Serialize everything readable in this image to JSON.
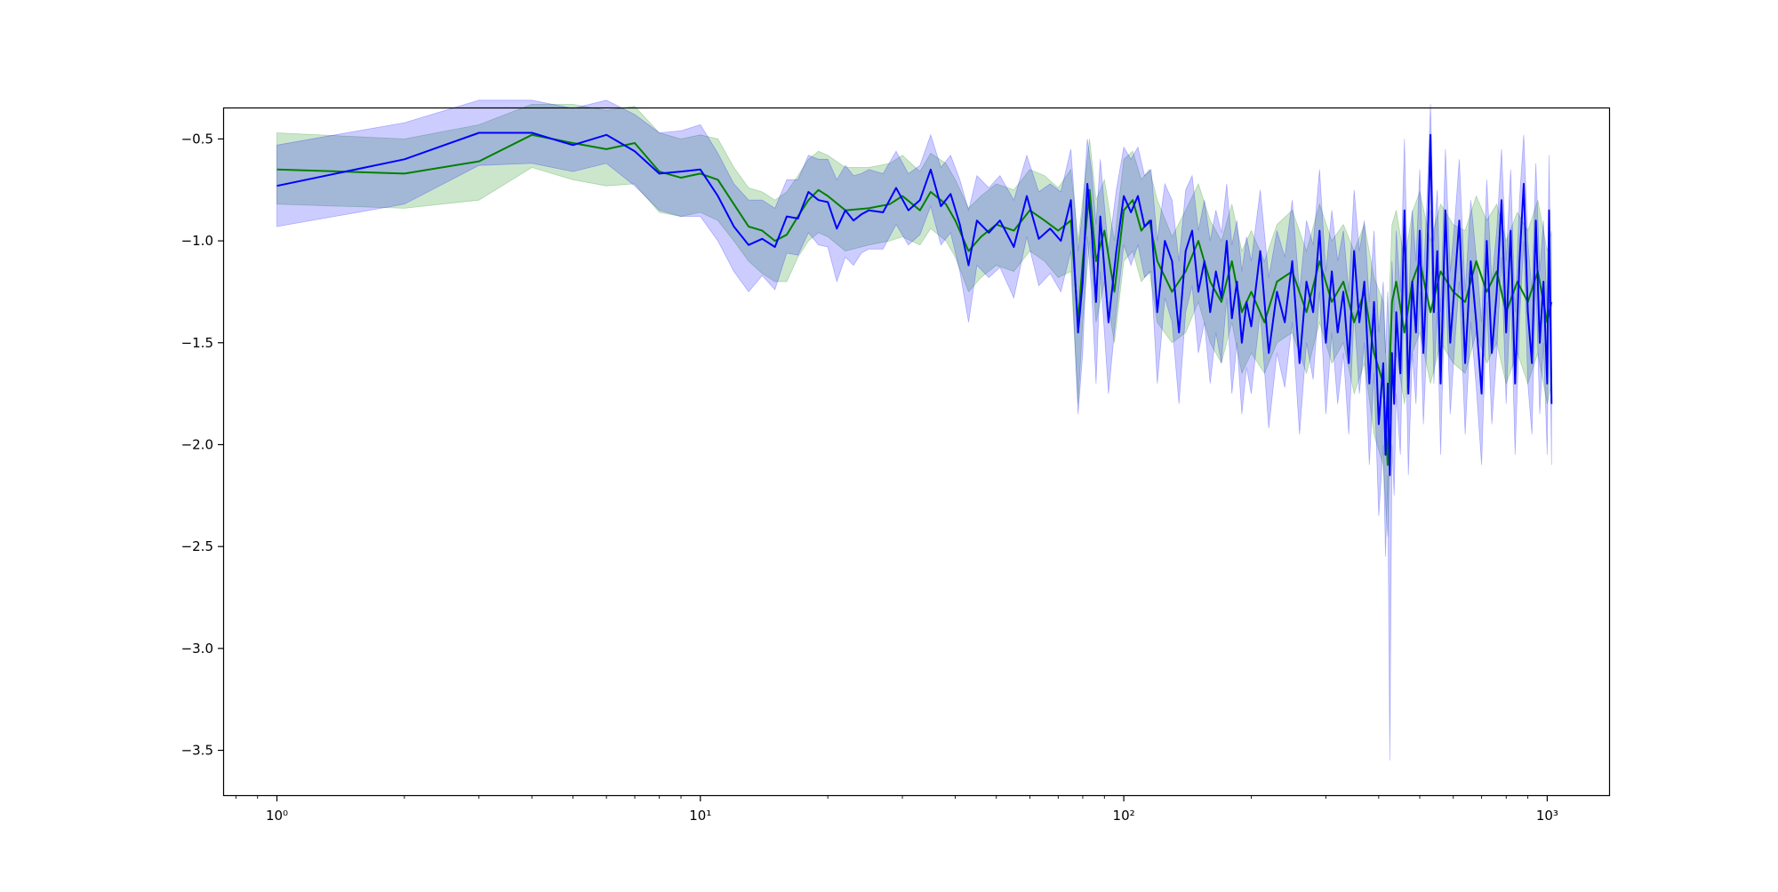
{
  "chart_data": {
    "type": "line",
    "title": "",
    "xlabel": "",
    "ylabel": "",
    "x_scale": "log",
    "xlim": [
      0.75,
      1400
    ],
    "ylim": [
      -3.72,
      -0.35
    ],
    "grid": false,
    "legend": "none",
    "x_ticks": [
      {
        "value": 1,
        "label": "10⁰"
      },
      {
        "value": 10,
        "label": "10¹"
      },
      {
        "value": 100,
        "label": "10²"
      },
      {
        "value": 1000,
        "label": "10³"
      }
    ],
    "y_ticks": [
      {
        "value": -0.5,
        "label": "−0.5"
      },
      {
        "value": -1.0,
        "label": "−1.0"
      },
      {
        "value": -1.5,
        "label": "−1.5"
      },
      {
        "value": -2.0,
        "label": "−2.0"
      },
      {
        "value": -2.5,
        "label": "−2.5"
      },
      {
        "value": -3.0,
        "label": "−3.0"
      },
      {
        "value": -3.5,
        "label": "−3.5"
      }
    ],
    "series": [
      {
        "color": "#008000",
        "band_color": "#008000",
        "x": [
          1,
          2,
          3,
          4,
          5,
          6,
          7,
          8,
          9,
          10,
          11,
          12,
          13,
          14,
          15,
          16,
          17,
          18,
          19,
          20,
          22,
          25,
          28,
          30,
          33,
          35,
          38,
          40,
          43,
          46,
          50,
          55,
          60,
          65,
          70,
          75,
          78,
          80,
          83,
          86,
          90,
          95,
          100,
          105,
          110,
          115,
          120,
          130,
          140,
          150,
          160,
          170,
          180,
          190,
          200,
          215,
          230,
          250,
          270,
          290,
          310,
          330,
          350,
          370,
          390,
          410,
          420,
          425,
          430,
          440,
          460,
          480,
          500,
          530,
          560,
          600,
          640,
          680,
          720,
          760,
          800,
          850,
          900,
          950,
          1000,
          1024
        ],
        "values": [
          -0.65,
          -0.67,
          -0.61,
          -0.48,
          -0.52,
          -0.55,
          -0.52,
          -0.66,
          -0.69,
          -0.67,
          -0.7,
          -0.82,
          -0.93,
          -0.95,
          -1.0,
          -0.97,
          -0.88,
          -0.8,
          -0.75,
          -0.78,
          -0.85,
          -0.84,
          -0.82,
          -0.78,
          -0.85,
          -0.76,
          -0.82,
          -0.9,
          -1.05,
          -0.98,
          -0.92,
          -0.95,
          -0.85,
          -0.9,
          -0.95,
          -0.9,
          -1.4,
          -1.1,
          -0.75,
          -1.1,
          -0.95,
          -1.25,
          -0.85,
          -0.8,
          -0.95,
          -0.9,
          -1.1,
          -1.25,
          -1.15,
          -1.0,
          -1.2,
          -1.3,
          -1.1,
          -1.35,
          -1.25,
          -1.4,
          -1.2,
          -1.15,
          -1.35,
          -1.1,
          -1.3,
          -1.2,
          -1.4,
          -1.25,
          -1.55,
          -1.7,
          -2.1,
          -1.6,
          -1.3,
          -1.2,
          -1.45,
          -1.2,
          -1.1,
          -1.35,
          -1.15,
          -1.25,
          -1.3,
          -1.1,
          -1.25,
          -1.15,
          -1.35,
          -1.2,
          -1.3,
          -1.15,
          -1.4,
          -1.3
        ],
        "lower": [
          -0.82,
          -0.84,
          -0.8,
          -0.64,
          -0.7,
          -0.73,
          -0.72,
          -0.86,
          -0.88,
          -0.86,
          -0.9,
          -1.0,
          -1.1,
          -1.16,
          -1.2,
          -1.2,
          -1.08,
          -1.0,
          -0.96,
          -0.98,
          -1.05,
          -1.02,
          -1.0,
          -0.98,
          -1.02,
          -0.94,
          -1.0,
          -1.08,
          -1.25,
          -1.18,
          -1.12,
          -1.15,
          -1.05,
          -1.1,
          -1.18,
          -1.15,
          -1.8,
          -1.4,
          -1.0,
          -1.4,
          -1.2,
          -1.5,
          -1.1,
          -1.05,
          -1.2,
          -1.15,
          -1.4,
          -1.5,
          -1.45,
          -1.3,
          -1.5,
          -1.6,
          -1.4,
          -1.65,
          -1.55,
          -1.65,
          -1.5,
          -1.45,
          -1.65,
          -1.4,
          -1.6,
          -1.5,
          -1.75,
          -1.6,
          -1.95,
          -2.1,
          -2.45,
          -2.0,
          -1.7,
          -1.55,
          -1.8,
          -1.55,
          -1.45,
          -1.7,
          -1.5,
          -1.6,
          -1.65,
          -1.45,
          -1.6,
          -1.5,
          -1.7,
          -1.55,
          -1.7,
          -1.55,
          -1.8,
          -1.7
        ],
        "upper": [
          -0.47,
          -0.5,
          -0.43,
          -0.33,
          -0.33,
          -0.36,
          -0.34,
          -0.47,
          -0.5,
          -0.48,
          -0.5,
          -0.64,
          -0.74,
          -0.76,
          -0.8,
          -0.76,
          -0.68,
          -0.6,
          -0.56,
          -0.58,
          -0.64,
          -0.64,
          -0.62,
          -0.58,
          -0.66,
          -0.57,
          -0.62,
          -0.7,
          -0.84,
          -0.78,
          -0.72,
          -0.75,
          -0.65,
          -0.68,
          -0.74,
          -0.65,
          -1.0,
          -0.8,
          -0.5,
          -0.8,
          -0.7,
          -1.0,
          -0.6,
          -0.56,
          -0.7,
          -0.65,
          -0.8,
          -0.98,
          -0.85,
          -0.72,
          -0.9,
          -1.0,
          -0.82,
          -1.05,
          -0.95,
          -1.1,
          -0.92,
          -0.85,
          -1.05,
          -0.82,
          -1.0,
          -0.92,
          -1.05,
          -0.92,
          -1.18,
          -1.3,
          -1.75,
          -1.2,
          -0.92,
          -0.85,
          -1.1,
          -0.86,
          -0.76,
          -1.0,
          -0.82,
          -0.92,
          -0.95,
          -0.78,
          -0.9,
          -0.82,
          -1.0,
          -0.86,
          -0.95,
          -0.8,
          -1.05,
          -0.95
        ]
      },
      {
        "color": "#0000ff",
        "band_color": "#0000ff",
        "x": [
          1,
          2,
          3,
          4,
          5,
          6,
          7,
          8,
          9,
          10,
          11,
          12,
          13,
          14,
          15,
          16,
          17,
          18,
          19,
          20,
          21,
          22,
          23,
          24,
          25,
          27,
          29,
          31,
          33,
          35,
          37,
          39,
          41,
          43,
          45,
          48,
          51,
          55,
          59,
          63,
          67,
          71,
          75,
          78,
          80,
          82,
          84,
          86,
          88,
          92,
          96,
          100,
          104,
          108,
          112,
          116,
          120,
          125,
          130,
          135,
          140,
          145,
          150,
          155,
          160,
          165,
          170,
          175,
          180,
          185,
          190,
          195,
          200,
          210,
          220,
          230,
          240,
          250,
          260,
          270,
          280,
          290,
          300,
          310,
          320,
          330,
          340,
          350,
          360,
          370,
          380,
          390,
          400,
          410,
          415,
          420,
          425,
          430,
          435,
          440,
          450,
          460,
          470,
          480,
          490,
          500,
          510,
          520,
          530,
          540,
          550,
          560,
          575,
          590,
          605,
          620,
          640,
          660,
          680,
          700,
          720,
          740,
          760,
          780,
          800,
          820,
          840,
          860,
          880,
          900,
          920,
          940,
          960,
          980,
          1000,
          1010,
          1024
        ],
        "values": [
          -0.73,
          -0.6,
          -0.47,
          -0.47,
          -0.53,
          -0.48,
          -0.56,
          -0.67,
          -0.66,
          -0.65,
          -0.78,
          -0.93,
          -1.02,
          -0.99,
          -1.03,
          -0.88,
          -0.89,
          -0.76,
          -0.8,
          -0.81,
          -0.94,
          -0.85,
          -0.9,
          -0.87,
          -0.85,
          -0.86,
          -0.74,
          -0.85,
          -0.8,
          -0.65,
          -0.83,
          -0.77,
          -0.92,
          -1.12,
          -0.9,
          -0.96,
          -0.9,
          -1.03,
          -0.78,
          -0.99,
          -0.94,
          -1.0,
          -0.8,
          -1.45,
          -1.2,
          -0.72,
          -0.95,
          -1.3,
          -0.88,
          -1.4,
          -1.05,
          -0.78,
          -0.86,
          -0.78,
          -0.93,
          -0.9,
          -1.35,
          -1.0,
          -1.1,
          -1.45,
          -1.05,
          -0.95,
          -1.25,
          -1.1,
          -1.35,
          -1.15,
          -1.28,
          -1.0,
          -1.38,
          -1.2,
          -1.5,
          -1.3,
          -1.42,
          -1.05,
          -1.55,
          -1.25,
          -1.4,
          -1.1,
          -1.6,
          -1.2,
          -1.35,
          -0.95,
          -1.5,
          -1.15,
          -1.45,
          -1.25,
          -1.6,
          -1.05,
          -1.4,
          -1.2,
          -1.7,
          -1.3,
          -1.9,
          -1.6,
          -2.05,
          -1.7,
          -2.15,
          -1.55,
          -1.8,
          -1.35,
          -1.65,
          -0.85,
          -1.75,
          -1.2,
          -1.45,
          -0.95,
          -1.55,
          -1.15,
          -0.48,
          -1.35,
          -1.05,
          -1.7,
          -0.85,
          -1.5,
          -1.2,
          -0.9,
          -1.6,
          -1.1,
          -1.4,
          -1.75,
          -1.0,
          -1.55,
          -1.25,
          -0.8,
          -1.45,
          -0.95,
          -1.7,
          -1.1,
          -0.72,
          -1.35,
          -1.6,
          -0.9,
          -1.5,
          -1.2,
          -1.7,
          -0.85,
          -1.8
        ],
        "lower": [
          -0.93,
          -0.82,
          -0.63,
          -0.62,
          -0.66,
          -0.62,
          -0.73,
          -0.85,
          -0.88,
          -0.88,
          -1.0,
          -1.15,
          -1.25,
          -1.17,
          -1.24,
          -1.06,
          -1.07,
          -0.96,
          -1.02,
          -1.03,
          -1.2,
          -1.08,
          -1.12,
          -1.06,
          -1.04,
          -1.04,
          -0.92,
          -1.02,
          -0.97,
          -0.83,
          -1.02,
          -0.96,
          -1.15,
          -1.4,
          -1.12,
          -1.18,
          -1.13,
          -1.28,
          -0.98,
          -1.22,
          -1.16,
          -1.25,
          -1.05,
          -1.85,
          -1.55,
          -0.98,
          -1.25,
          -1.7,
          -1.15,
          -1.75,
          -1.35,
          -1.02,
          -1.12,
          -1.02,
          -1.18,
          -1.15,
          -1.7,
          -1.28,
          -1.4,
          -1.8,
          -1.35,
          -1.22,
          -1.55,
          -1.4,
          -1.7,
          -1.45,
          -1.6,
          -1.28,
          -1.75,
          -1.5,
          -1.85,
          -1.62,
          -1.75,
          -1.35,
          -1.92,
          -1.55,
          -1.72,
          -1.4,
          -1.95,
          -1.5,
          -1.68,
          -1.25,
          -1.85,
          -1.45,
          -1.8,
          -1.55,
          -1.95,
          -1.35,
          -1.75,
          -1.5,
          -2.1,
          -1.65,
          -2.35,
          -2.0,
          -2.55,
          -2.15,
          -3.55,
          -2.0,
          -2.25,
          -1.75,
          -2.05,
          -1.15,
          -2.15,
          -1.55,
          -1.8,
          -1.25,
          -1.9,
          -1.5,
          -0.85,
          -1.7,
          -1.35,
          -2.05,
          -1.15,
          -1.85,
          -1.5,
          -1.2,
          -1.95,
          -1.4,
          -1.72,
          -2.1,
          -1.3,
          -1.9,
          -1.55,
          -1.08,
          -1.8,
          -1.25,
          -2.05,
          -1.4,
          -1.0,
          -1.7,
          -1.95,
          -1.2,
          -1.85,
          -1.5,
          -2.05,
          -1.15,
          -2.1
        ],
        "upper": [
          -0.53,
          -0.42,
          -0.31,
          -0.31,
          -0.35,
          -0.31,
          -0.38,
          -0.47,
          -0.46,
          -0.43,
          -0.57,
          -0.72,
          -0.8,
          -0.8,
          -0.84,
          -0.7,
          -0.7,
          -0.58,
          -0.6,
          -0.6,
          -0.7,
          -0.63,
          -0.68,
          -0.67,
          -0.65,
          -0.67,
          -0.56,
          -0.67,
          -0.63,
          -0.48,
          -0.64,
          -0.58,
          -0.7,
          -0.85,
          -0.68,
          -0.74,
          -0.68,
          -0.8,
          -0.58,
          -0.76,
          -0.72,
          -0.76,
          -0.55,
          -1.05,
          -0.85,
          -0.5,
          -0.66,
          -0.92,
          -0.6,
          -1.05,
          -0.75,
          -0.54,
          -0.6,
          -0.54,
          -0.68,
          -0.65,
          -1.0,
          -0.72,
          -0.8,
          -1.1,
          -0.75,
          -0.68,
          -0.95,
          -0.8,
          -1.0,
          -0.85,
          -0.96,
          -0.72,
          -1.02,
          -0.9,
          -1.15,
          -0.98,
          -1.1,
          -0.75,
          -1.18,
          -0.95,
          -1.08,
          -0.8,
          -1.25,
          -0.9,
          -1.02,
          -0.65,
          -1.15,
          -0.85,
          -1.1,
          -0.95,
          -1.25,
          -0.75,
          -1.05,
          -0.9,
          -1.3,
          -0.95,
          -1.45,
          -1.2,
          -1.55,
          -1.25,
          -1.6,
          -1.1,
          -1.35,
          -0.95,
          -1.25,
          -0.5,
          -1.35,
          -0.85,
          -1.1,
          -0.65,
          -1.2,
          -0.8,
          -0.33,
          -1.0,
          -0.75,
          -1.35,
          -0.55,
          -1.15,
          -0.9,
          -0.6,
          -1.25,
          -0.8,
          -1.08,
          -1.4,
          -0.7,
          -1.2,
          -0.95,
          -0.55,
          -1.1,
          -0.65,
          -1.35,
          -0.8,
          -0.48,
          -1.0,
          -1.25,
          -0.62,
          -1.15,
          -0.9,
          -1.35,
          -0.58,
          -1.5
        ]
      }
    ]
  }
}
